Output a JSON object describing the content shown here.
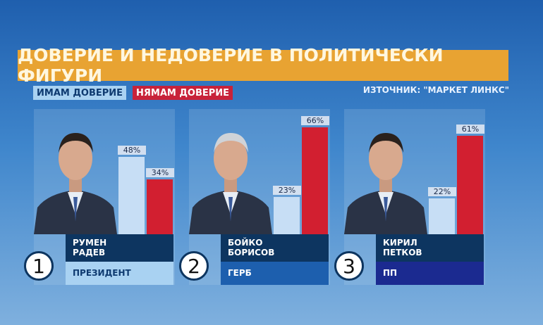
{
  "title": "ДОВЕРИЕ И НЕДОВЕРИЕ В ПОЛИТИЧЕСКИ ФИГУРИ",
  "source": "ИЗТОЧНИК: \"МАРКЕТ ЛИНКС\"",
  "chart_data": {
    "type": "bar",
    "title": "ДОВЕРИЕ И НЕДОВЕРИЕ В ПОЛИТИЧЕСКИ ФИГУРИ",
    "categories": [
      "РУМЕН РАДЕВ",
      "БОЙКО БОРИСОВ",
      "КИРИЛ ПЕТКОВ"
    ],
    "series": [
      {
        "name": "ИМАМ ДОВЕРИЕ",
        "color": "#c7def5",
        "values": [
          48,
          23,
          22
        ],
        "labels": [
          "48%",
          "23%",
          "22%"
        ]
      },
      {
        "name": "НЯМАМ ДОВЕРИЕ",
        "color": "#d21f30",
        "values": [
          34,
          66,
          61
        ],
        "labels": [
          "34%",
          "66%",
          "61%"
        ]
      }
    ],
    "legend": "top-left"
  },
  "people": [
    {
      "rank": "1",
      "first": "РУМЕН",
      "last": "РАДЕВ",
      "role": "ПРЕЗИДЕНТ",
      "role_bg": "#a9d2f2",
      "role_color": "#0e3a70"
    },
    {
      "rank": "2",
      "first": "БОЙКО",
      "last": "БОРИСОВ",
      "role": "ГЕРБ",
      "role_bg": "#1d5fae",
      "role_color": "#ffffff"
    },
    {
      "rank": "3",
      "first": "КИРИЛ",
      "last": "ПЕТКОВ",
      "role": "ПП",
      "role_bg": "#1b2a90",
      "role_color": "#ffffff"
    }
  ]
}
